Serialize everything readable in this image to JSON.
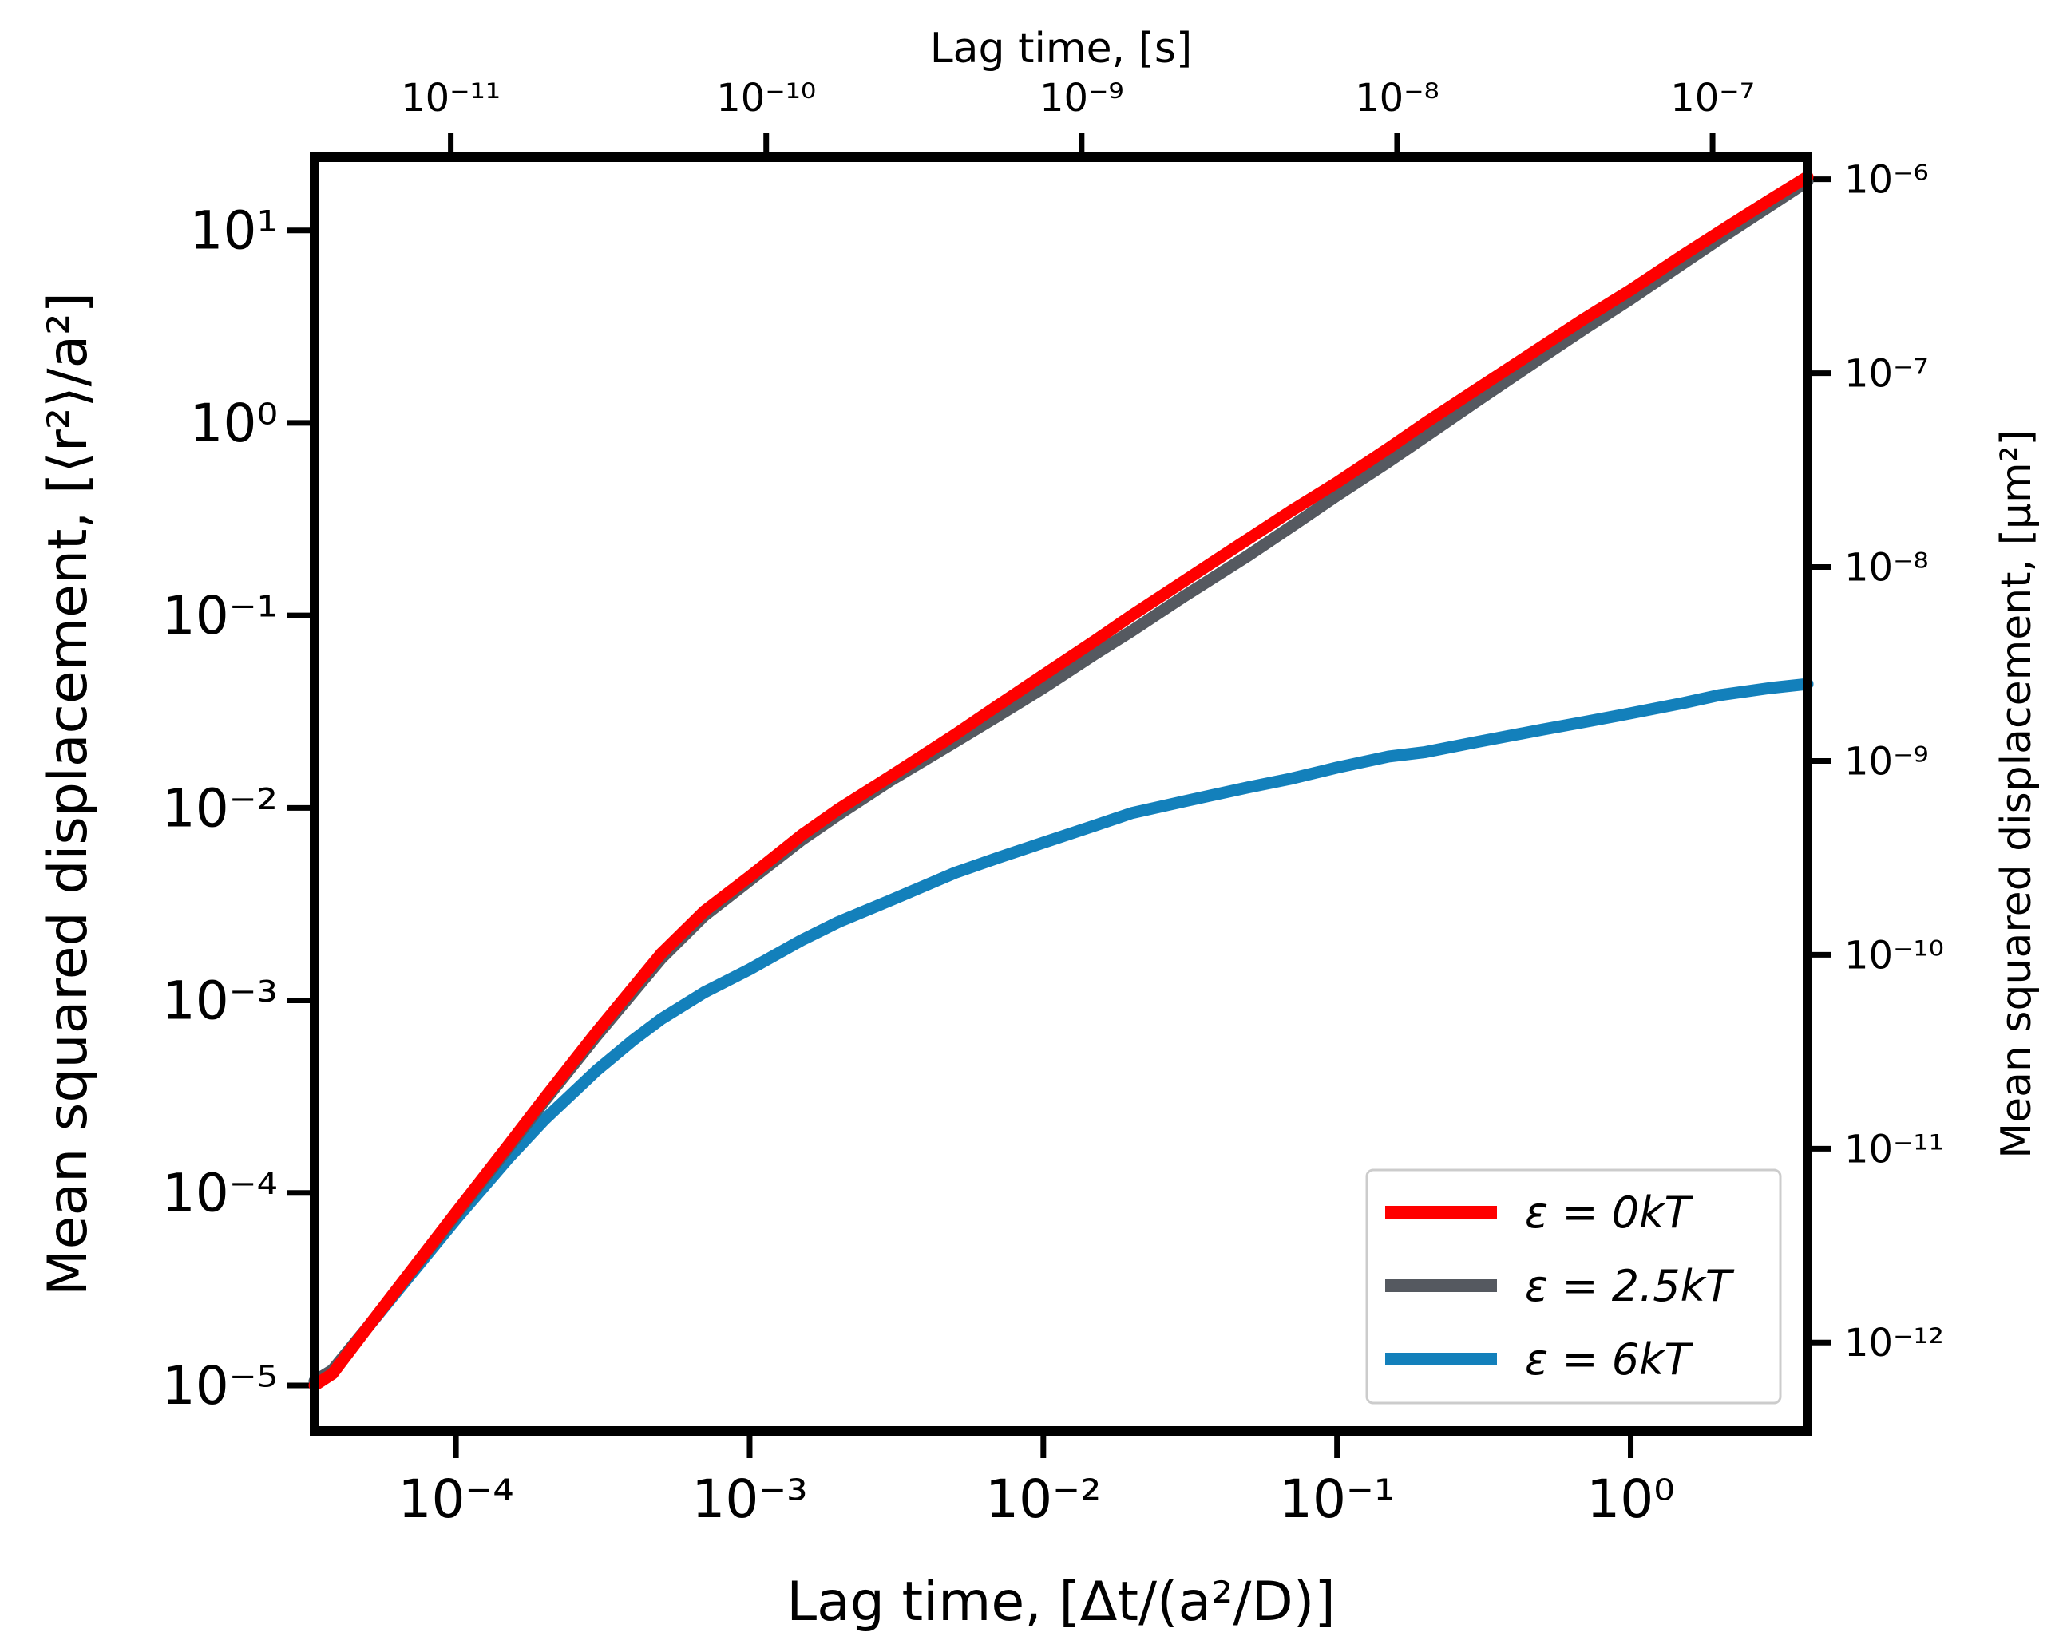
{
  "chart_data": {
    "type": "line",
    "title": "",
    "xlabel": "Lag time, [Δt/(a²/D)]",
    "ylabel": "Mean squared displacement, [⟨r²⟩/a²]",
    "x2label": "Lag time, [s]",
    "y2label": "Mean squared displacement, [μm²]",
    "xscale": "log",
    "yscale": "log",
    "xlim": [
      3.3e-05,
      4.0
    ],
    "ylim": [
      5.8e-06,
      24
    ],
    "x2lim": [
      3.7e-12,
      2e-07
    ],
    "y2lim": [
      3.5e-13,
      1.3e-06
    ],
    "grid": false,
    "legend_position": "bottom-right",
    "x_ticks": [
      {
        "value": 0.0001,
        "label": "10⁻⁴"
      },
      {
        "value": 0.001,
        "label": "10⁻³"
      },
      {
        "value": 0.01,
        "label": "10⁻²"
      },
      {
        "value": 0.1,
        "label": "10⁻¹"
      },
      {
        "value": 1,
        "label": "10⁰"
      }
    ],
    "y_ticks": [
      {
        "value": 1e-05,
        "label": "10⁻⁵"
      },
      {
        "value": 0.0001,
        "label": "10⁻⁴"
      },
      {
        "value": 0.001,
        "label": "10⁻³"
      },
      {
        "value": 0.01,
        "label": "10⁻²"
      },
      {
        "value": 0.1,
        "label": "10⁻¹"
      },
      {
        "value": 1,
        "label": "10⁰"
      },
      {
        "value": 10,
        "label": "10¹"
      }
    ],
    "x2_ticks": [
      {
        "value": 1e-11,
        "label": "10⁻¹¹"
      },
      {
        "value": 1e-10,
        "label": "10⁻¹⁰"
      },
      {
        "value": 1e-09,
        "label": "10⁻⁹"
      },
      {
        "value": 1e-08,
        "label": "10⁻⁸"
      },
      {
        "value": 1e-07,
        "label": "10⁻⁷"
      }
    ],
    "y2_ticks": [
      {
        "value": 1e-12,
        "label": "10⁻¹²"
      },
      {
        "value": 1e-11,
        "label": "10⁻¹¹"
      },
      {
        "value": 1e-10,
        "label": "10⁻¹⁰"
      },
      {
        "value": 1e-09,
        "label": "10⁻⁹"
      },
      {
        "value": 1e-08,
        "label": "10⁻⁸"
      },
      {
        "value": 1e-07,
        "label": "10⁻⁷"
      },
      {
        "value": 1e-06,
        "label": "10⁻⁶"
      }
    ],
    "series": [
      {
        "name": "ε = 0kT",
        "color": "#ff0000",
        "x": [
          3.3e-05,
          3.8e-05,
          5e-05,
          7e-05,
          0.0001,
          0.00015,
          0.0002,
          0.0003,
          0.0005,
          0.0007,
          0.001,
          0.0015,
          0.002,
          0.003,
          0.005,
          0.007,
          0.01,
          0.015,
          0.02,
          0.03,
          0.05,
          0.07,
          0.1,
          0.15,
          0.2,
          0.3,
          0.5,
          0.7,
          1,
          1.5,
          2,
          3,
          4
        ],
        "y": [
          1e-05,
          1.15e-05,
          2e-05,
          3.9e-05,
          7.9e-05,
          0.000175,
          0.00031,
          0.00068,
          0.00175,
          0.0029,
          0.0044,
          0.0072,
          0.0098,
          0.0145,
          0.024,
          0.034,
          0.049,
          0.074,
          0.1,
          0.15,
          0.25,
          0.35,
          0.49,
          0.74,
          1.0,
          1.5,
          2.5,
          3.5,
          4.9,
          7.4,
          9.8,
          14.5,
          19.0
        ]
      },
      {
        "name": "ε = 2.5kT",
        "color": "#555960",
        "x": [
          3.3e-05,
          3.8e-05,
          5e-05,
          7e-05,
          0.0001,
          0.00015,
          0.0002,
          0.0003,
          0.0005,
          0.0007,
          0.001,
          0.0015,
          0.002,
          0.003,
          0.005,
          0.007,
          0.01,
          0.015,
          0.02,
          0.03,
          0.05,
          0.07,
          0.1,
          0.15,
          0.2,
          0.3,
          0.5,
          0.7,
          1,
          1.5,
          2,
          3,
          4
        ],
        "y": [
          1.05e-05,
          1.2e-05,
          2e-05,
          3.85e-05,
          7.7e-05,
          0.00017,
          0.0003,
          0.00065,
          0.00165,
          0.00275,
          0.0042,
          0.0068,
          0.0092,
          0.0138,
          0.022,
          0.03,
          0.042,
          0.063,
          0.083,
          0.125,
          0.205,
          0.29,
          0.42,
          0.63,
          0.85,
          1.3,
          2.2,
          3.1,
          4.4,
          6.7,
          9.0,
          13.5,
          18.0
        ]
      },
      {
        "name": "ε = 6kT",
        "color": "#1380bb",
        "x": [
          3.3e-05,
          3.8e-05,
          5e-05,
          7e-05,
          0.0001,
          0.00015,
          0.0002,
          0.0003,
          0.0004,
          0.0005,
          0.0007,
          0.001,
          0.0015,
          0.002,
          0.003,
          0.005,
          0.007,
          0.01,
          0.015,
          0.02,
          0.03,
          0.05,
          0.07,
          0.1,
          0.15,
          0.2,
          0.3,
          0.5,
          0.7,
          1,
          1.5,
          2,
          3,
          4
        ],
        "y": [
          1.05e-05,
          1.2e-05,
          2e-05,
          3.75e-05,
          7.3e-05,
          0.00015,
          0.00024,
          0.00043,
          0.00062,
          0.0008,
          0.0011,
          0.00145,
          0.00205,
          0.00255,
          0.0033,
          0.0046,
          0.0055,
          0.0066,
          0.0081,
          0.0094,
          0.0108,
          0.0128,
          0.0142,
          0.0162,
          0.0185,
          0.0195,
          0.022,
          0.0255,
          0.028,
          0.031,
          0.035,
          0.0385,
          0.042,
          0.044
        ]
      }
    ]
  }
}
